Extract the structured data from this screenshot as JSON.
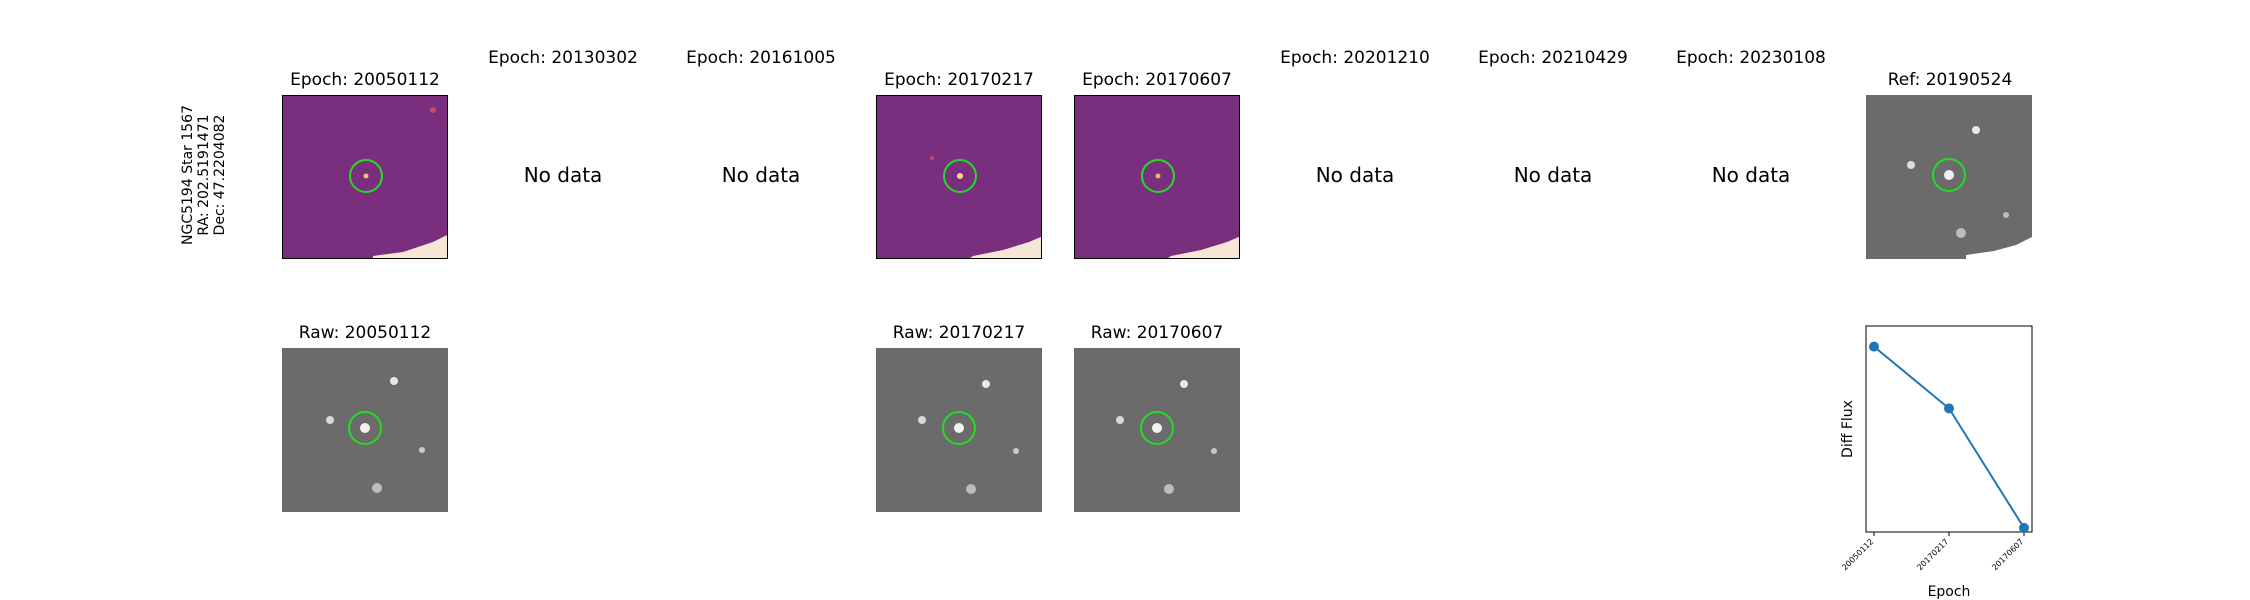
{
  "star": {
    "name": "NGC5194 Star 1567",
    "ra": "RA: 202.5191471",
    "dec": "Dec: 47.2204082"
  },
  "epochs": [
    {
      "title": "Epoch: 20050112",
      "has_data": true
    },
    {
      "title": "Epoch: 20130302",
      "has_data": false
    },
    {
      "title": "Epoch: 20161005",
      "has_data": false
    },
    {
      "title": "Epoch: 20170217",
      "has_data": true
    },
    {
      "title": "Epoch: 20170607",
      "has_data": true
    },
    {
      "title": "Epoch: 20201210",
      "has_data": false
    },
    {
      "title": "Epoch: 20210429",
      "has_data": false
    },
    {
      "title": "Epoch: 20230108",
      "has_data": false
    }
  ],
  "no_data_text": "No data",
  "ref_title": "Ref: 20190524",
  "raw_titles": [
    "Raw: 20050112",
    "Raw: 20170217",
    "Raw: 20170607"
  ],
  "colors": {
    "diff_bg": "#7a2e7e",
    "raw_bg": "#6b6b6b",
    "circle": "#22dd22",
    "line": "#1f77b4"
  },
  "chart_data": {
    "type": "line",
    "categories": [
      "20050112",
      "20170217",
      "20170607"
    ],
    "values": [
      0.9,
      0.6,
      0.02
    ],
    "xlabel": "Epoch",
    "ylabel": "Diff Flux",
    "ylim": [
      0,
      1
    ],
    "grid": false
  }
}
